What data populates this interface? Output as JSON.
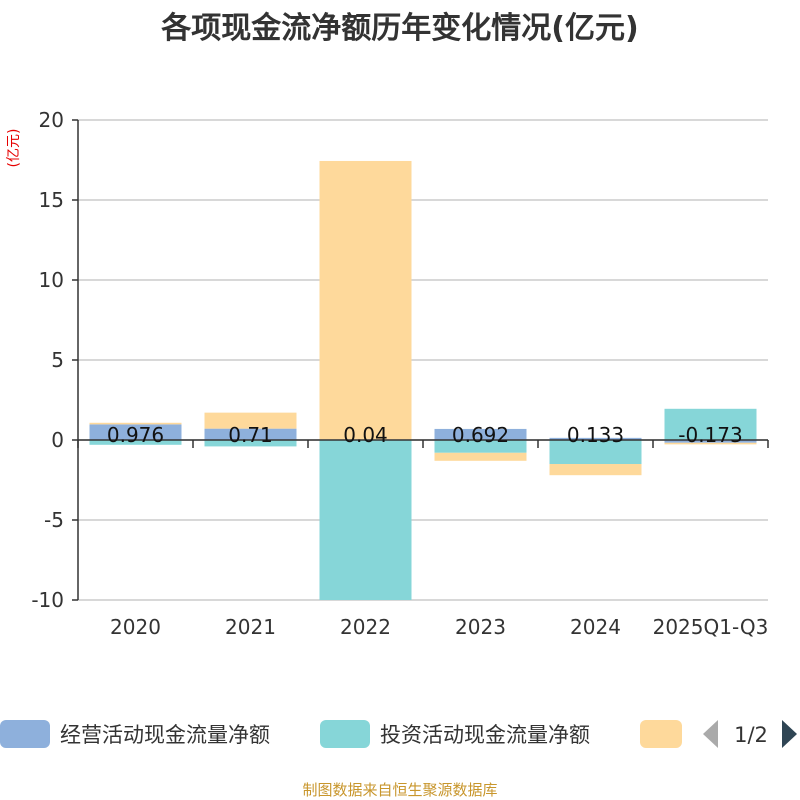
{
  "chart_data": {
    "type": "bar",
    "stacked": true,
    "title": "各项现金流净额历年变化情况(亿元)",
    "ylabel": "(亿元)",
    "xlabel": "",
    "ylim": [
      -10,
      20
    ],
    "yticks": [
      20,
      15,
      10,
      5,
      0,
      -5,
      -10
    ],
    "grid": true,
    "categories": [
      "2020",
      "2021",
      "2022",
      "2023",
      "2024",
      "2025Q1-Q3"
    ],
    "series": [
      {
        "name": "经营活动现金流量净额",
        "color": "#8eb0dc",
        "values": [
          0.976,
          0.71,
          0.04,
          0.692,
          0.133,
          -0.173
        ],
        "labels": [
          "0.976",
          "0.71",
          "0.04",
          "0.692",
          "0.133",
          "-0.173"
        ]
      },
      {
        "name": "投资活动现金流量净额",
        "color": "#86d6d8",
        "values": [
          -0.3,
          -0.4,
          -10,
          -0.8,
          -1.5,
          1.95
        ],
        "labels": []
      },
      {
        "name": "",
        "color": "#fed99b",
        "values": [
          0.1,
          1.0,
          17.4,
          -0.5,
          -0.7,
          -0.1
        ],
        "labels": []
      }
    ],
    "legend": {
      "position": "bottom",
      "page": "1/2"
    },
    "source": "制图数据来自恒生聚源数据库"
  }
}
